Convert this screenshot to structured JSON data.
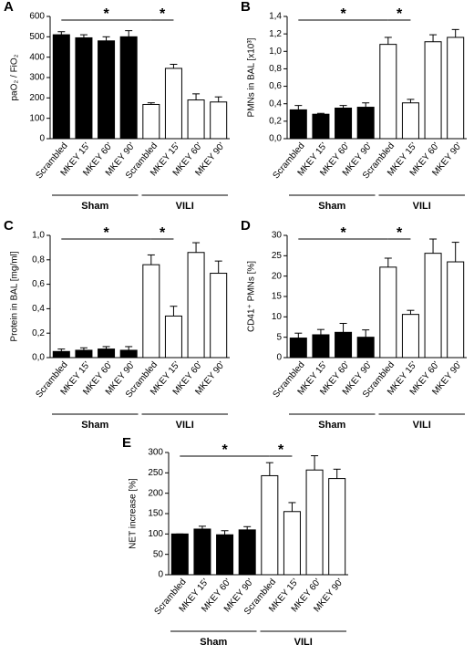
{
  "chart_data": [
    {
      "type": "bar",
      "panel": "A",
      "ylabel": "paO₂ / FiO₂",
      "categories": [
        "Scrambled",
        "MKEY 15'",
        "MKEY 60'",
        "MKEY 90'",
        "Scrambled",
        "MKEY 15'",
        "MKEY 60'",
        "MKEY 90'"
      ],
      "values": [
        510,
        495,
        480,
        500,
        168,
        345,
        190,
        180
      ],
      "errors": [
        15,
        15,
        20,
        30,
        8,
        20,
        30,
        25
      ],
      "groups": [
        {
          "label": "Sham",
          "color": "#000000"
        },
        {
          "label": "VILI",
          "color": "#ffffff"
        }
      ],
      "annotations": [
        "*",
        "*"
      ],
      "ylim": [
        0,
        600
      ],
      "yticks": [
        0,
        100,
        200,
        300,
        400,
        500,
        600
      ]
    },
    {
      "type": "bar",
      "panel": "B",
      "ylabel": "PMNs in BAL [x10³]",
      "categories": [
        "Scrambled",
        "MKEY 15'",
        "MKEY 60'",
        "MKEY 90'",
        "Scrambled",
        "MKEY 15'",
        "MKEY 60'",
        "MKEY 90'"
      ],
      "values": [
        0.33,
        0.28,
        0.35,
        0.36,
        1.08,
        0.41,
        1.11,
        1.16
      ],
      "errors": [
        0.05,
        0.01,
        0.03,
        0.05,
        0.08,
        0.04,
        0.08,
        0.09
      ],
      "groups": [
        {
          "label": "Sham",
          "color": "#000000"
        },
        {
          "label": "VILI",
          "color": "#ffffff"
        }
      ],
      "annotations": [
        "*",
        "*"
      ],
      "ylim": [
        0,
        1.4
      ],
      "yticks": [
        {
          "value": 0,
          "label": "0,0"
        },
        {
          "value": 0.2,
          "label": "0,2"
        },
        {
          "value": 0.4,
          "label": "0,4"
        },
        {
          "value": 0.6,
          "label": "0,6"
        },
        {
          "value": 0.8,
          "label": "0,8"
        },
        {
          "value": 1.0,
          "label": "1,0"
        },
        {
          "value": 1.2,
          "label": "1,2"
        },
        {
          "value": 1.4,
          "label": "1,4"
        }
      ]
    },
    {
      "type": "bar",
      "panel": "C",
      "ylabel": "Protein in BAL [mg/ml]",
      "categories": [
        "Scrambled",
        "MKEY 15'",
        "MKEY 60'",
        "MKEY 90'",
        "Scrambled",
        "MKEY 15'",
        "MKEY 60'",
        "MKEY 90'"
      ],
      "values": [
        0.05,
        0.06,
        0.07,
        0.06,
        0.76,
        0.34,
        0.86,
        0.69
      ],
      "errors": [
        0.02,
        0.02,
        0.02,
        0.03,
        0.08,
        0.08,
        0.08,
        0.1
      ],
      "groups": [
        {
          "label": "Sham",
          "color": "#000000"
        },
        {
          "label": "VILI",
          "color": "#ffffff"
        }
      ],
      "annotations": [
        "*",
        "*"
      ],
      "ylim": [
        0,
        1.0
      ],
      "yticks": [
        {
          "value": 0,
          "label": "0,0"
        },
        {
          "value": 0.2,
          "label": "0,2"
        },
        {
          "value": 0.4,
          "label": "0,4"
        },
        {
          "value": 0.6,
          "label": "0,6"
        },
        {
          "value": 0.8,
          "label": "0,8"
        },
        {
          "value": 1.0,
          "label": "1,0"
        }
      ]
    },
    {
      "type": "bar",
      "panel": "D",
      "ylabel": "CD41⁺ PMNs [%]",
      "categories": [
        "Scrambled",
        "MKEY 15'",
        "MKEY 60'",
        "MKEY 90'",
        "Scrambled",
        "MKEY 15'",
        "MKEY 60'",
        "MKEY 90'"
      ],
      "values": [
        4.8,
        5.6,
        6.2,
        5.0,
        22.2,
        10.6,
        25.6,
        23.5
      ],
      "errors": [
        1.2,
        1.3,
        2.2,
        1.8,
        2.2,
        1.0,
        3.5,
        4.8
      ],
      "groups": [
        {
          "label": "Sham",
          "color": "#000000"
        },
        {
          "label": "VILI",
          "color": "#ffffff"
        }
      ],
      "annotations": [
        "*",
        "*"
      ],
      "ylim": [
        0,
        30
      ],
      "yticks": [
        0,
        5,
        10,
        15,
        20,
        25,
        30
      ]
    },
    {
      "type": "bar",
      "panel": "E",
      "ylabel": "NET increase [%]",
      "categories": [
        "Scrambled",
        "MKEY 15'",
        "MKEY 60'",
        "MKEY 90'",
        "Scrambled",
        "MKEY 15'",
        "MKEY 60'",
        "MKEY 90'"
      ],
      "values": [
        100,
        112,
        98,
        110,
        243,
        155,
        257,
        236
      ],
      "errors": [
        0,
        7,
        10,
        8,
        32,
        22,
        35,
        23
      ],
      "groups": [
        {
          "label": "Sham",
          "color": "#000000"
        },
        {
          "label": "VILI",
          "color": "#ffffff"
        }
      ],
      "annotations": [
        "*",
        "*"
      ],
      "ylim": [
        0,
        300
      ],
      "yticks": [
        0,
        50,
        100,
        150,
        200,
        250,
        300
      ]
    }
  ]
}
